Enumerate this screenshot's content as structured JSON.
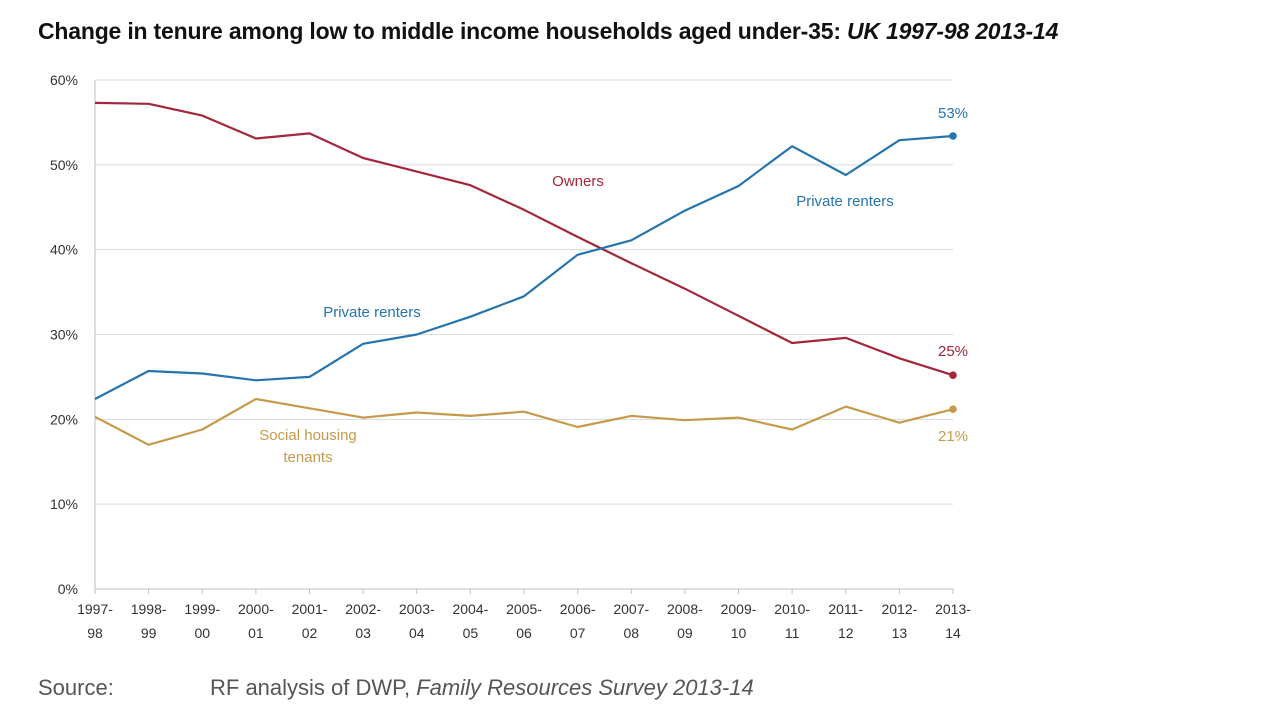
{
  "title": {
    "main": "Change in tenure among low to middle income households aged under-35: ",
    "sub": "UK 1997-98 2013-14"
  },
  "source": {
    "label": "Source:",
    "text": "RF analysis of DWP, ",
    "title": "Family Resources Survey 2013-14"
  },
  "chart_data": {
    "type": "line",
    "categories": [
      [
        "1997-",
        "98"
      ],
      [
        "1998-",
        "99"
      ],
      [
        "1999-",
        "00"
      ],
      [
        "2000-",
        "01"
      ],
      [
        "2001-",
        "02"
      ],
      [
        "2002-",
        "03"
      ],
      [
        "2003-",
        "04"
      ],
      [
        "2004-",
        "05"
      ],
      [
        "2005-",
        "06"
      ],
      [
        "2006-",
        "07"
      ],
      [
        "2007-",
        "08"
      ],
      [
        "2008-",
        "09"
      ],
      [
        "2009-",
        "10"
      ],
      [
        "2010-",
        "11"
      ],
      [
        "2011-",
        "12"
      ],
      [
        "2012-",
        "13"
      ],
      [
        "2013-",
        "14"
      ]
    ],
    "ylim": [
      0,
      60
    ],
    "yticks": [
      "0%",
      "10%",
      "20%",
      "30%",
      "40%",
      "50%",
      "60%"
    ],
    "grid": true,
    "series": [
      {
        "name": "Owners",
        "color": "#a3263c",
        "values": [
          57.3,
          57.2,
          55.8,
          53.1,
          53.7,
          50.8,
          49.2,
          47.6,
          44.7,
          41.5,
          38.4,
          35.4,
          32.2,
          29.0,
          29.6,
          27.2,
          25.2
        ],
        "labels": [
          "Owners"
        ],
        "end_label": "25%"
      },
      {
        "name": "Private renters",
        "color": "#2574ad",
        "values": [
          22.4,
          25.7,
          25.4,
          24.6,
          25.0,
          28.9,
          30.0,
          32.1,
          34.5,
          39.4,
          41.1,
          44.6,
          47.5,
          52.2,
          48.8,
          52.9,
          53.4
        ],
        "labels": [
          "Private renters",
          "Private renters"
        ],
        "end_label": "53%"
      },
      {
        "name": "Social housing tenants",
        "color": "#c59a4b",
        "values": [
          20.3,
          17.0,
          18.8,
          22.4,
          21.3,
          20.2,
          20.8,
          20.4,
          20.9,
          19.1,
          20.4,
          19.9,
          20.2,
          18.8,
          21.5,
          19.6,
          21.2
        ],
        "labels": [
          "Social housing",
          "tenants"
        ],
        "end_label": "21%"
      }
    ]
  }
}
